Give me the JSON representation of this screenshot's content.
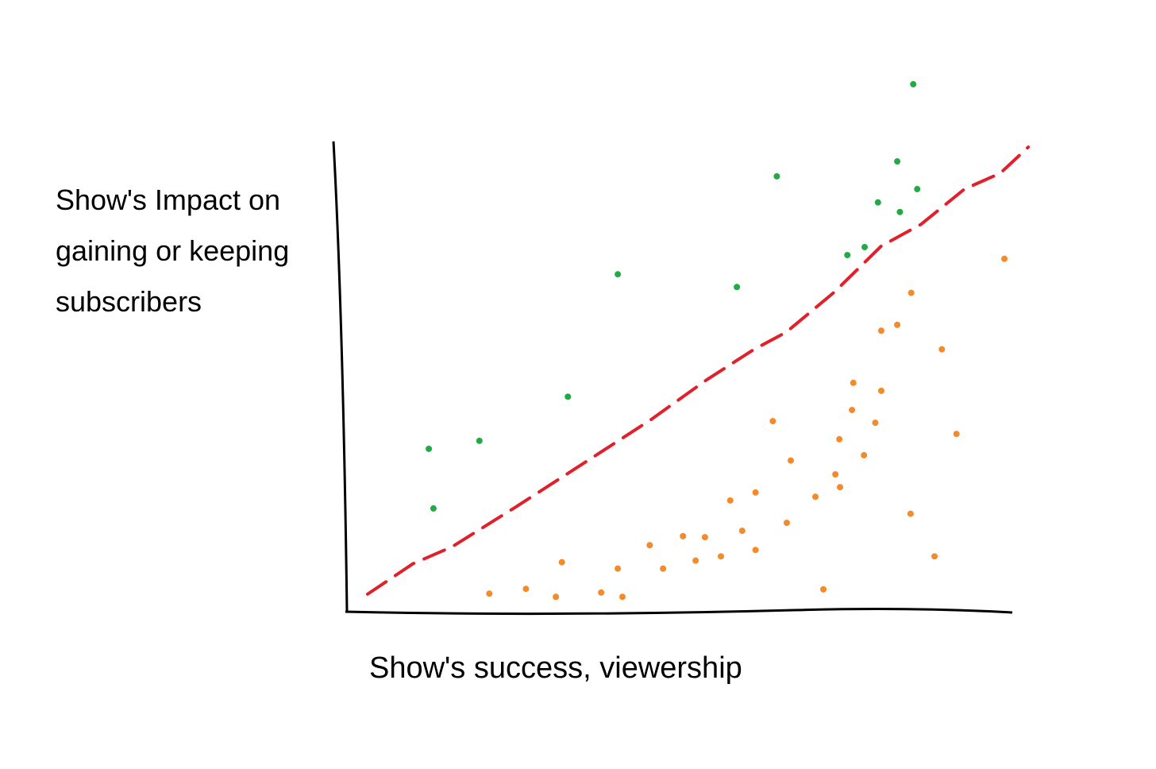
{
  "chart_data": {
    "type": "scatter",
    "x_label": "Show's success, viewership",
    "y_label": "Show's Impact on gaining or keeping subscribers",
    "xlim": [
      0,
      105
    ],
    "ylim": [
      0,
      100
    ],
    "series": [
      {
        "color": "#22aa44",
        "x": [
          85.1,
          64.6,
          82.7,
          85.7,
          79.8,
          83.1,
          75.2,
          77.8,
          40.7,
          58.6,
          33.2,
          19.9,
          12.3,
          13.0
        ],
        "values": [
          99.1,
          81.8,
          84.6,
          79.4,
          76.9,
          75.1,
          67.0,
          68.5,
          63.4,
          61.0,
          40.4,
          32.1,
          30.6,
          19.4
        ]
      },
      {
        "color": "#f58a2a",
        "x": [
          98.8,
          84.8,
          80.3,
          82.7,
          89.4,
          76.1,
          80.3,
          75.9,
          79.4,
          64.0,
          91.6,
          74.0,
          77.7,
          66.7,
          73.4,
          74.1,
          70.4,
          61.4,
          57.6,
          66.1,
          84.7,
          59.4,
          50.5,
          53.8,
          45.5,
          56.2,
          61.4,
          52.4,
          47.5,
          88.3,
          32.3,
          40.7,
          21.4,
          26.9,
          31.4,
          38.2,
          41.4,
          71.6
        ],
        "values": [
          66.3,
          59.9,
          52.8,
          53.9,
          49.3,
          43.0,
          41.5,
          37.9,
          35.5,
          35.8,
          33.4,
          32.4,
          29.4,
          28.4,
          25.8,
          23.4,
          21.6,
          22.4,
          20.9,
          16.7,
          18.4,
          15.2,
          14.2,
          14.0,
          12.5,
          10.4,
          11.6,
          9.6,
          8.1,
          10.4,
          9.3,
          8.1,
          3.4,
          4.3,
          2.8,
          3.6,
          2.8,
          4.2
        ]
      }
    ],
    "trend": {
      "color": "#e0202a",
      "dashed": true,
      "x": [
        3.1,
        9.9,
        15.8,
        25.4,
        36.2,
        45.7,
        54.1,
        61.2,
        66.0,
        73.2,
        80.3,
        86.3,
        92.8,
        98.2,
        102.4
      ],
      "y": [
        3.3,
        9.0,
        12.2,
        19.7,
        28.4,
        36.1,
        43.6,
        49.3,
        52.5,
        60.0,
        68.7,
        72.8,
        79.4,
        82.4,
        87.3
      ]
    }
  }
}
